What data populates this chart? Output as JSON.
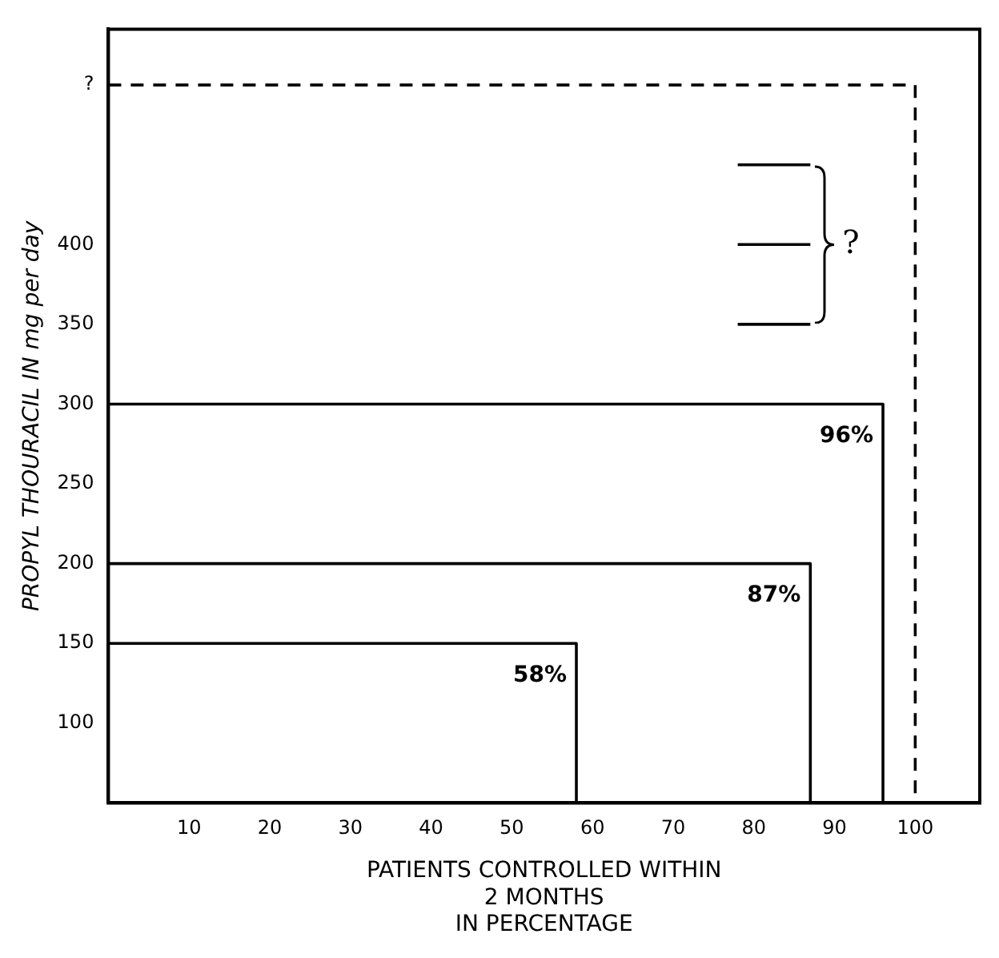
{
  "chart_data": {
    "type": "line",
    "xlabel": "PATIENTS CONTROLLED WITHIN\n2 MONTHS\nIN PERCENTAGE",
    "ylabel": "PROPYL THOURACIL IN mg per day",
    "xlim": [
      0,
      108
    ],
    "xticks": [
      10,
      20,
      30,
      40,
      50,
      60,
      70,
      80,
      90,
      100
    ],
    "ylim": [
      50,
      535
    ],
    "yticks": [
      100,
      150,
      200,
      250,
      300,
      350,
      400,
      {
        "value": 500,
        "label": "?"
      }
    ],
    "grid": false,
    "legend": false,
    "marker": "none",
    "series": [
      {
        "color": "#000000",
        "x": [
          0,
          58,
          58
        ],
        "values": [
          150,
          150,
          50
        ]
      },
      {
        "color": "#000000",
        "x": [
          0,
          87,
          87
        ],
        "values": [
          200,
          200,
          50
        ]
      },
      {
        "color": "#000000",
        "x": [
          0,
          96,
          96
        ],
        "values": [
          300,
          300,
          50
        ]
      },
      {
        "color": "#000000",
        "x": [
          0,
          100,
          100
        ],
        "values": [
          500,
          500,
          50
        ],
        "line_style": "dashed"
      },
      {
        "color": "#000000",
        "x": [
          78,
          87
        ],
        "values": [
          450,
          450
        ]
      },
      {
        "color": "#000000",
        "x": [
          78,
          87
        ],
        "values": [
          400,
          400
        ]
      },
      {
        "color": "#000000",
        "x": [
          78,
          87
        ],
        "values": [
          350,
          350
        ]
      }
    ],
    "annotations": [
      "58%",
      "87%",
      "96%",
      "?"
    ]
  }
}
